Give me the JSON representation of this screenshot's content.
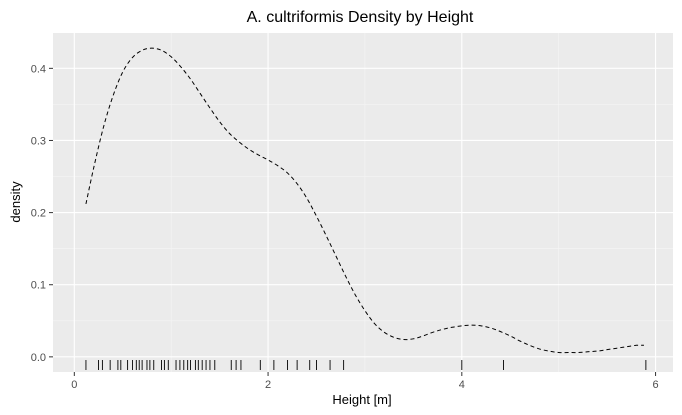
{
  "chart_data": {
    "type": "line",
    "title": "A. cultriformis Density by Height",
    "xlabel": "Height [m]",
    "ylabel": "density",
    "xlim": [
      -0.22,
      6.18
    ],
    "ylim": [
      -0.021,
      0.449
    ],
    "x_ticks": [
      0,
      2,
      4,
      6
    ],
    "y_ticks": [
      0.0,
      0.1,
      0.2,
      0.3,
      0.4
    ],
    "x_tick_labels": [
      "0",
      "2",
      "4",
      "6"
    ],
    "y_tick_labels": [
      "0.0",
      "0.1",
      "0.2",
      "0.3",
      "0.4"
    ],
    "grid": true,
    "legend": "none",
    "line_style": "dashed",
    "series": [
      {
        "x": [
          0.12,
          0.2,
          0.3,
          0.4,
          0.5,
          0.6,
          0.7,
          0.8,
          0.9,
          1.0,
          1.1,
          1.2,
          1.3,
          1.4,
          1.5,
          1.6,
          1.7,
          1.8,
          1.9,
          2.0,
          2.1,
          2.2,
          2.3,
          2.4,
          2.5,
          2.6,
          2.7,
          2.8,
          2.9,
          3.0,
          3.1,
          3.2,
          3.3,
          3.4,
          3.5,
          3.6,
          3.7,
          3.8,
          3.9,
          4.0,
          4.1,
          4.2,
          4.3,
          4.4,
          4.5,
          4.6,
          4.7,
          4.8,
          4.9,
          5.0,
          5.1,
          5.2,
          5.3,
          5.4,
          5.5,
          5.6,
          5.7,
          5.8,
          5.88
        ],
        "y": [
          0.212,
          0.262,
          0.318,
          0.362,
          0.395,
          0.415,
          0.425,
          0.428,
          0.425,
          0.416,
          0.402,
          0.385,
          0.365,
          0.345,
          0.326,
          0.31,
          0.298,
          0.288,
          0.28,
          0.273,
          0.265,
          0.255,
          0.24,
          0.22,
          0.195,
          0.168,
          0.14,
          0.112,
          0.086,
          0.064,
          0.046,
          0.034,
          0.027,
          0.024,
          0.025,
          0.029,
          0.034,
          0.038,
          0.041,
          0.043,
          0.044,
          0.043,
          0.04,
          0.035,
          0.029,
          0.022,
          0.016,
          0.011,
          0.008,
          0.006,
          0.006,
          0.006,
          0.007,
          0.008,
          0.01,
          0.012,
          0.014,
          0.016,
          0.016
        ]
      }
    ],
    "rug": [
      0.12,
      0.25,
      0.29,
      0.37,
      0.45,
      0.48,
      0.55,
      0.6,
      0.64,
      0.67,
      0.7,
      0.75,
      0.78,
      0.82,
      0.9,
      0.93,
      0.97,
      1.05,
      1.09,
      1.13,
      1.17,
      1.2,
      1.25,
      1.28,
      1.32,
      1.36,
      1.4,
      1.45,
      1.62,
      1.67,
      1.72,
      1.92,
      2.06,
      2.2,
      2.3,
      2.43,
      2.5,
      2.64,
      2.78,
      4.0,
      4.43,
      5.9
    ]
  }
}
